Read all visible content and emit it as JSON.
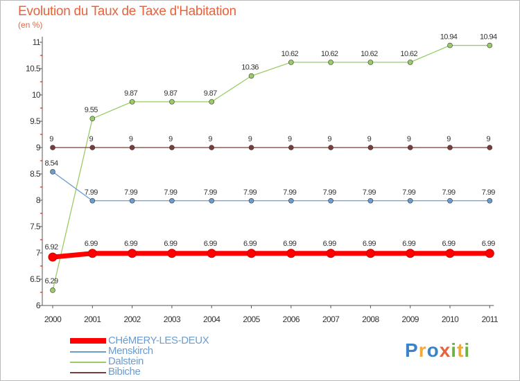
{
  "header": {
    "title": "Evolution du Taux de Taxe d'Habitation",
    "unit": "(en %)"
  },
  "brand": {
    "logo_text": "Proxiti"
  },
  "chart_data": {
    "type": "line",
    "title": "Evolution du Taux de Taxe d'Habitation",
    "ylabel": "(en %)",
    "xlabel": "",
    "x": [
      "2000",
      "2001",
      "2002",
      "2003",
      "2004",
      "2005",
      "2006",
      "2007",
      "2008",
      "2009",
      "2010",
      "2011"
    ],
    "ylim": [
      6,
      11
    ],
    "yticks": [
      "6",
      "6.5",
      "7",
      "7.5",
      "8",
      "8.5",
      "9",
      "9.5",
      "10",
      "10.5",
      "11"
    ],
    "grid": false,
    "legend": "bottom-left",
    "series": [
      {
        "name": "CHéMERY-LES-DEUX",
        "color": "#ff0000",
        "values": [
          6.92,
          6.99,
          6.99,
          6.99,
          6.99,
          6.99,
          6.99,
          6.99,
          6.99,
          6.99,
          6.99,
          6.99
        ],
        "labels": [
          "6.92",
          "6.99",
          "6.99",
          "6.99",
          "6.99",
          "6.99",
          "6.99",
          "6.99",
          "6.99",
          "6.99",
          "6.99",
          "6.99"
        ]
      },
      {
        "name": "Menskirch",
        "color": "#6a9ccf",
        "values": [
          8.54,
          7.99,
          7.99,
          7.99,
          7.99,
          7.99,
          7.99,
          7.99,
          7.99,
          7.99,
          7.99,
          7.99
        ],
        "labels": [
          "8.54",
          "7.99",
          "7.99",
          "7.99",
          "7.99",
          "7.99",
          "7.99",
          "7.99",
          "7.99",
          "7.99",
          "7.99",
          "7.99"
        ]
      },
      {
        "name": "Dalstein",
        "color": "#99cc66",
        "values": [
          6.29,
          9.55,
          9.87,
          9.87,
          9.87,
          10.36,
          10.62,
          10.62,
          10.62,
          10.62,
          10.94,
          10.94
        ],
        "labels": [
          "6.29",
          "9.55",
          "9.87",
          "9.87",
          "9.87",
          "10.36",
          "10.62",
          "10.62",
          "10.62",
          "10.62",
          "10.94",
          "10.94"
        ]
      },
      {
        "name": "Bibiche",
        "color": "#7a3b3b",
        "values": [
          9,
          9,
          9,
          9,
          9,
          9,
          9,
          9,
          9,
          9,
          9,
          9
        ],
        "labels": [
          "9",
          "9",
          "9",
          "9",
          "9",
          "9",
          "9",
          "9",
          "9",
          "9",
          "9",
          "9"
        ]
      }
    ]
  }
}
